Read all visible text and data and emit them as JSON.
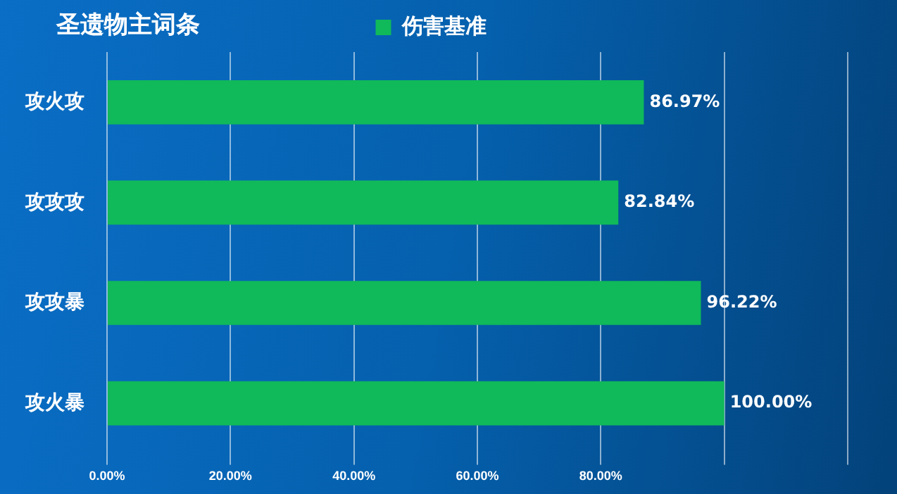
{
  "chart_data": {
    "type": "bar",
    "orientation": "horizontal",
    "title": "圣遗物主词条",
    "categories": [
      "攻火攻",
      "攻攻攻",
      "攻攻暴",
      "攻火暴"
    ],
    "series": [
      {
        "name": "伤害基准",
        "color": "#10b95a",
        "values": [
          86.97,
          82.84,
          96.22,
          100.0
        ],
        "value_labels": [
          "86.97%",
          "82.84%",
          "96.22%",
          "100.00%"
        ]
      }
    ],
    "xlim": [
      0,
      120
    ],
    "xticks": [
      {
        "value": 0,
        "label": "0.00%"
      },
      {
        "value": 20,
        "label": "20.00%"
      },
      {
        "value": 40,
        "label": "40.00%"
      },
      {
        "value": 60,
        "label": "60.00%"
      },
      {
        "value": 80,
        "label": "80.00%"
      },
      {
        "value": 100,
        "label": null
      },
      {
        "value": 120,
        "label": null
      }
    ],
    "grid": "x",
    "legend": "top"
  }
}
